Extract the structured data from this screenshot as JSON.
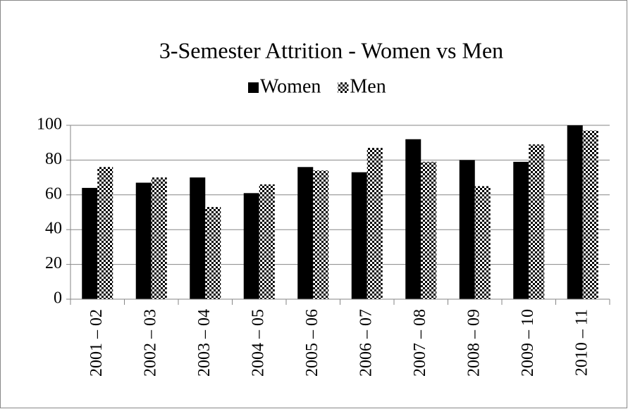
{
  "chart_data": {
    "type": "bar",
    "title": "3-Semester Attrition - Women vs Men",
    "categories": [
      "2001 – 02",
      "2002 – 03",
      "2003 – 04",
      "2004 – 05",
      "2005 – 06",
      "2006 – 07",
      "2007 – 08",
      "2008 – 09",
      "2009 – 10",
      "2010 – 11"
    ],
    "series": [
      {
        "name": "Women",
        "color": "#000000",
        "values": [
          64,
          67,
          70,
          61,
          76,
          73,
          92,
          80,
          79,
          100
        ]
      },
      {
        "name": "Men",
        "color": "#000000",
        "pattern": "checkerboard",
        "values": [
          76,
          70,
          53,
          66,
          74,
          87,
          79,
          65,
          89,
          97
        ]
      }
    ],
    "ylim": [
      0,
      100
    ],
    "yticks": [
      0,
      20,
      40,
      60,
      80,
      100
    ],
    "grid": true,
    "legend": "top"
  }
}
